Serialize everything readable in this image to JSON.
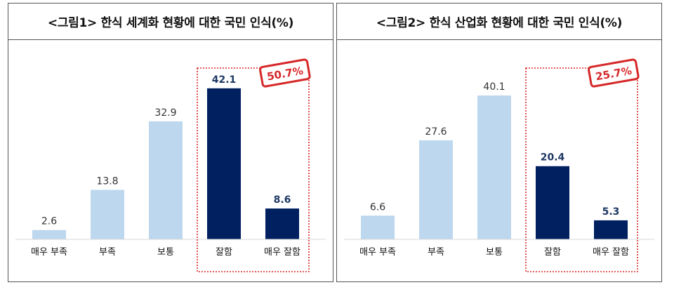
{
  "chart_data": [
    {
      "type": "bar",
      "title": "<그림1> 한식 세계화 현황에 대한 국민 인식(%)",
      "categories": [
        "매우 부족",
        "부족",
        "보통",
        "잘함",
        "매우 잘함"
      ],
      "values": [
        2.6,
        13.8,
        32.9,
        42.1,
        8.6
      ],
      "ylim": [
        0,
        45
      ],
      "grid": false,
      "highlight": {
        "categories": [
          "잘함",
          "매우 잘함"
        ],
        "total_label": "50.7%"
      },
      "colors": {
        "normal": "#bdd7ee",
        "highlight": "#002060",
        "highlight_label": "#1f3864",
        "normal_label": "#333333",
        "stamp": "#d62728"
      }
    },
    {
      "type": "bar",
      "title": "<그림2> 한식 산업화 현황에 대한 국민 인식(%)",
      "categories": [
        "매우 부족",
        "부족",
        "보통",
        "잘함",
        "매우 잘함"
      ],
      "values": [
        6.6,
        27.6,
        40.1,
        20.4,
        5.3
      ],
      "ylim": [
        0,
        45
      ],
      "grid": false,
      "highlight": {
        "categories": [
          "잘함",
          "매우 잘함"
        ],
        "total_label": "25.7%"
      },
      "colors": {
        "normal": "#bdd7ee",
        "highlight": "#002060",
        "highlight_label": "#1f3864",
        "normal_label": "#333333",
        "stamp": "#d62728"
      }
    }
  ]
}
